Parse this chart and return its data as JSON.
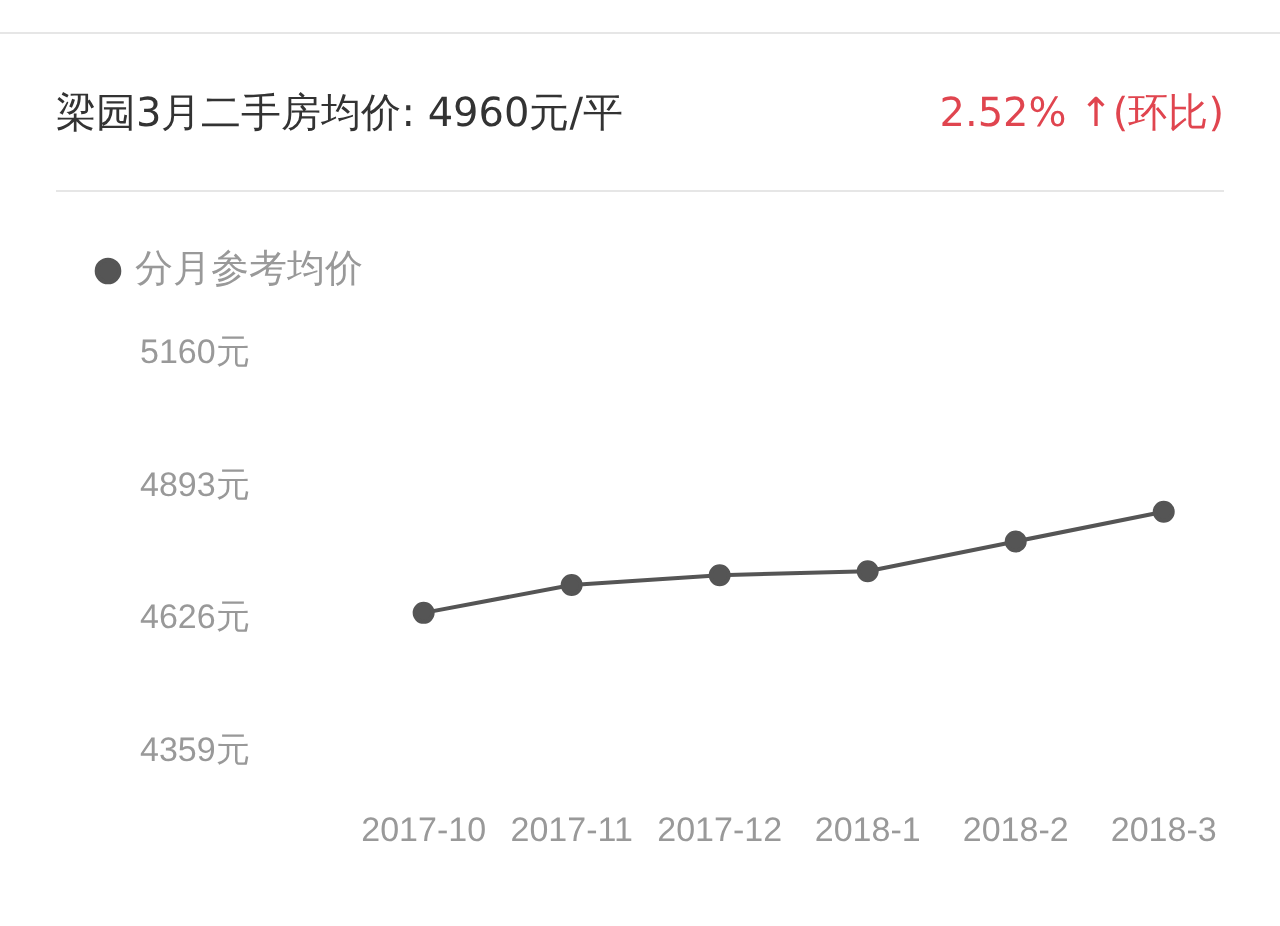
{
  "chart_data": {
    "type": "line",
    "title": "梁园3月二手房均价: 4960元/平",
    "annotations": [
      "2.52% ↑(环比)"
    ],
    "categories": [
      "2017-10",
      "2017-11",
      "2017-12",
      "2018-1",
      "2018-2",
      "2018-3"
    ],
    "series": [
      {
        "name": "分月参考均价",
        "color": "#555555",
        "values": [
          4638,
          4694,
          4714,
          4722,
          4782,
          4842
        ]
      }
    ],
    "ylim": [
      4359,
      5160
    ],
    "yticks": [
      {
        "value": 4359,
        "label": "4359元"
      },
      {
        "value": 4626,
        "label": "4626元"
      },
      {
        "value": 4893,
        "label": "4893元"
      },
      {
        "value": 5160,
        "label": "5160元"
      }
    ],
    "grid": false,
    "legend": "top left",
    "marker": "circle",
    "line_style": "solid"
  }
}
